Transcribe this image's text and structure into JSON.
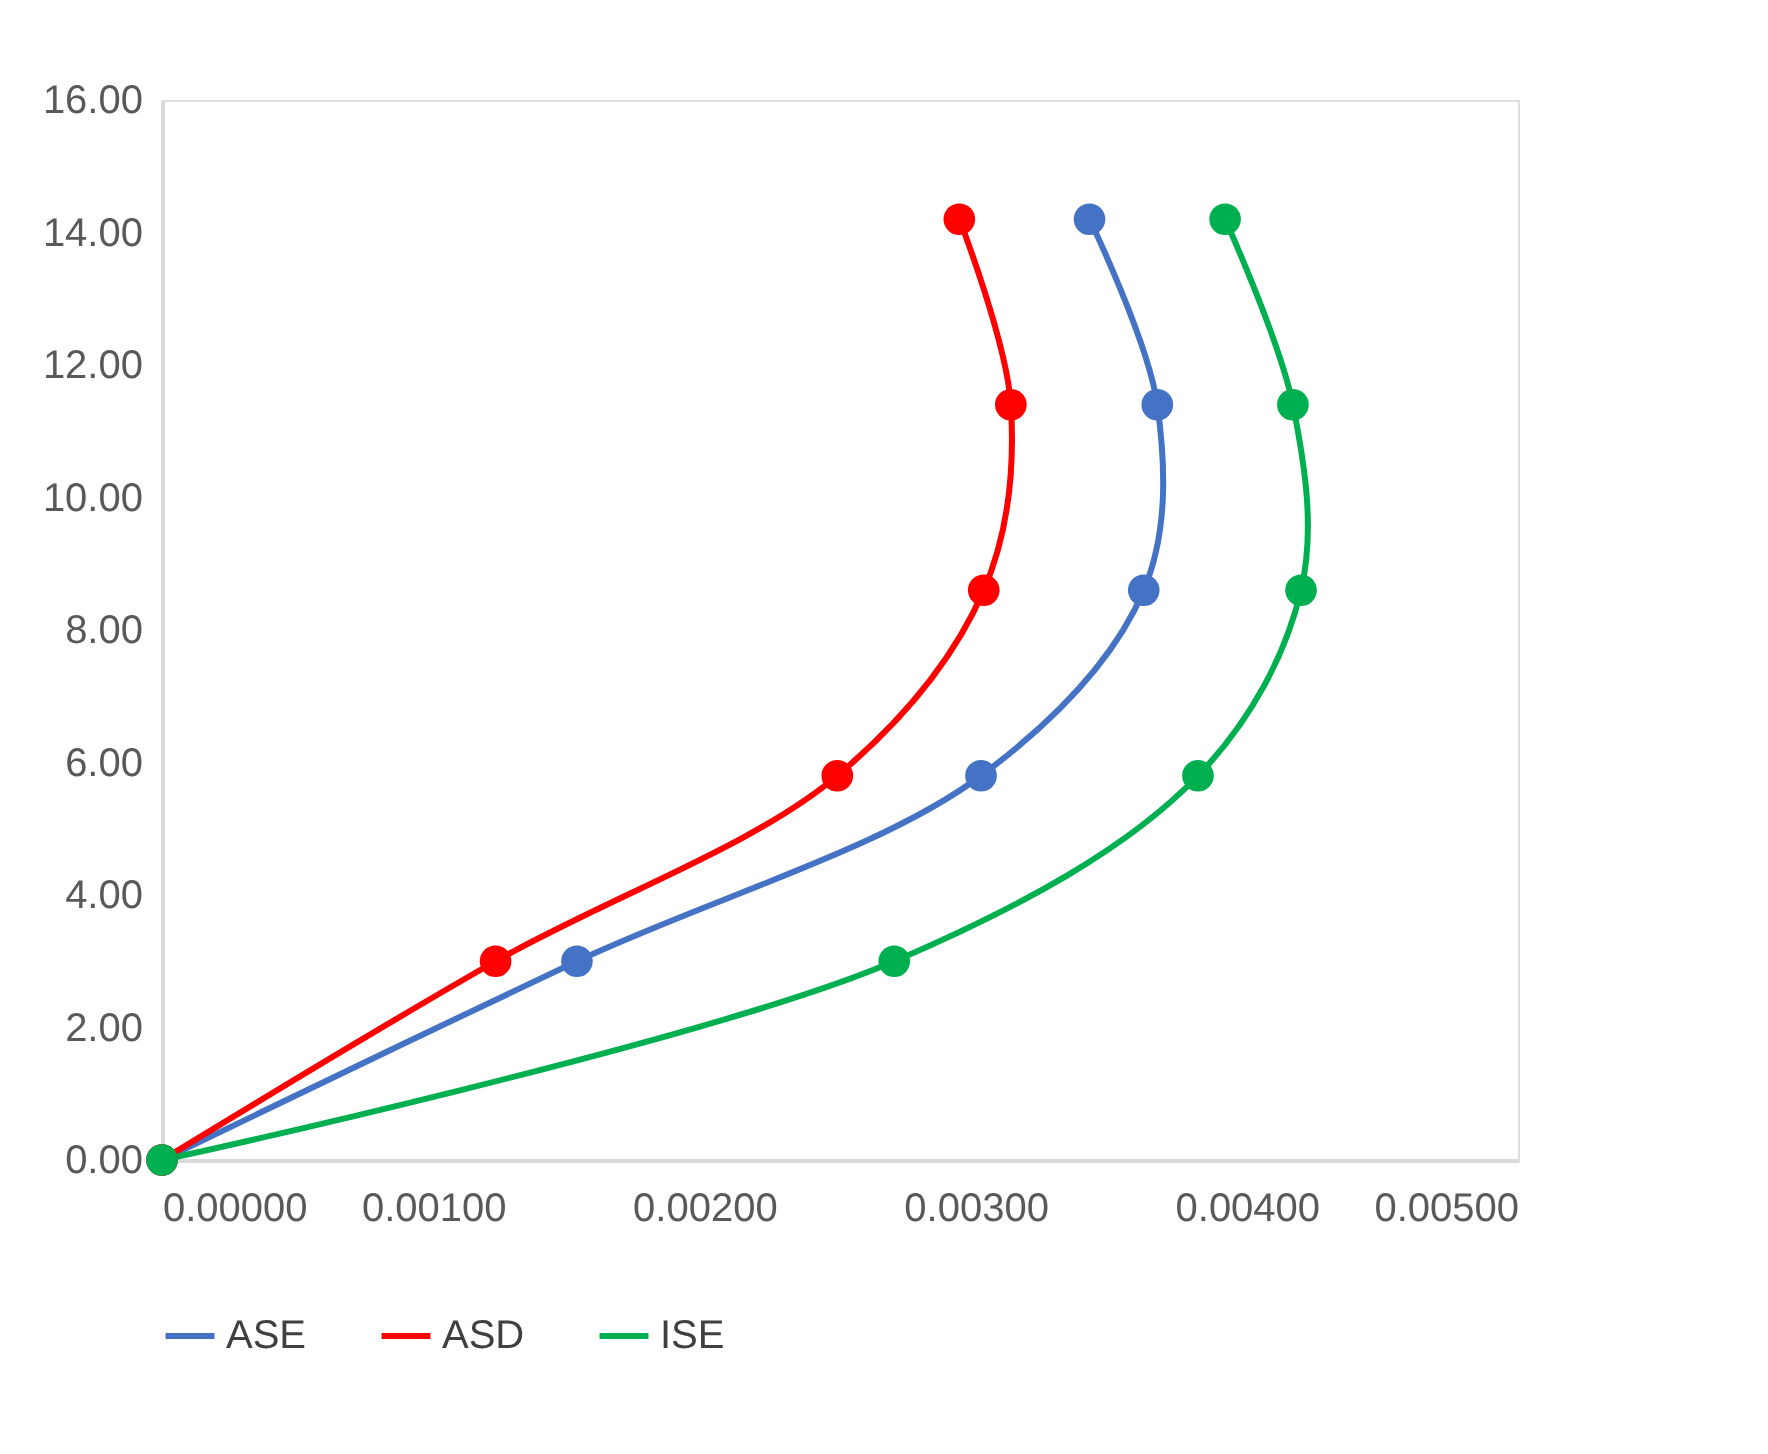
{
  "chart_data": {
    "type": "line",
    "legend": "bottom",
    "marker": "circle",
    "line_style": "solid",
    "grid": false,
    "xlim": [
      0,
      0.005
    ],
    "ylim": [
      0,
      16
    ],
    "xticks": [
      {
        "value": 0,
        "label": "0.00000"
      },
      {
        "value": 0.001,
        "label": "0.00100"
      },
      {
        "value": 0.002,
        "label": "0.00200"
      },
      {
        "value": 0.003,
        "label": "0.00300"
      },
      {
        "value": 0.004,
        "label": "0.00400"
      },
      {
        "value": 0.005,
        "label": "0.00500"
      }
    ],
    "yticks": [
      {
        "value": 0,
        "label": "0.00"
      },
      {
        "value": 2,
        "label": "2.00"
      },
      {
        "value": 4,
        "label": "4.00"
      },
      {
        "value": 6,
        "label": "6.00"
      },
      {
        "value": 8,
        "label": "8.00"
      },
      {
        "value": 10,
        "label": "10.00"
      },
      {
        "value": 12,
        "label": "12.00"
      },
      {
        "value": 14,
        "label": "14.00"
      },
      {
        "value": 16,
        "label": "16.00"
      }
    ],
    "series": [
      {
        "name": "ASE",
        "color": "#4472c4",
        "x": [
          0,
          0.00153,
          0.00302,
          0.00362,
          0.00367,
          0.00342
        ],
        "values": [
          0,
          3.0,
          5.8,
          8.6,
          11.4,
          14.2
        ]
      },
      {
        "name": "ASD",
        "color": "#ff0000",
        "x": [
          0,
          0.00123,
          0.00249,
          0.00303,
          0.00313,
          0.00294
        ],
        "values": [
          0,
          3.0,
          5.8,
          8.6,
          11.4,
          14.2
        ]
      },
      {
        "name": "ISE",
        "color": "#00b050",
        "x": [
          0,
          0.0027,
          0.00382,
          0.0042,
          0.00417,
          0.00392
        ],
        "values": [
          0,
          3.0,
          5.8,
          8.6,
          11.4,
          14.2
        ]
      }
    ]
  }
}
